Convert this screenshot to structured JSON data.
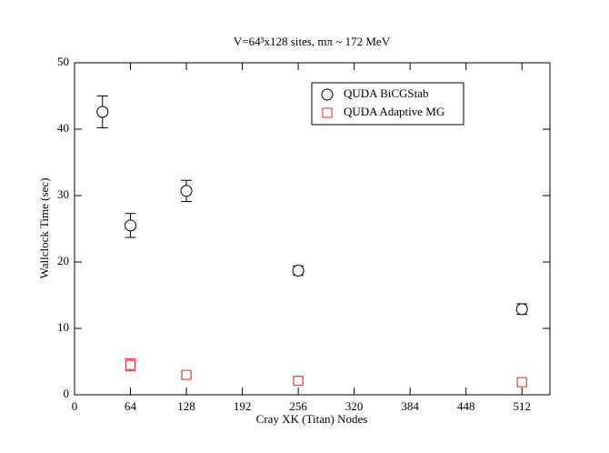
{
  "chart_data": {
    "type": "scatter",
    "title": "V=64³x128 sites, mπ ~ 172 MeV",
    "x_label": "Cray XK (Titan) Nodes",
    "y_label": "Wallclock Time (sec)",
    "xlim": [
      0,
      544
    ],
    "xticks": [
      0,
      64,
      128,
      192,
      256,
      320,
      384,
      448,
      512
    ],
    "ylim": [
      0,
      50
    ],
    "yticks": [
      0,
      10,
      20,
      30,
      40,
      50
    ],
    "legend": "upper right",
    "series": [
      {
        "name": "QUDA BiCGStab",
        "color": "#000000",
        "marker": "circle",
        "x": [
          32,
          64,
          128,
          256,
          512
        ],
        "values": [
          42.6,
          25.5,
          30.7,
          18.7,
          12.9
        ],
        "errors": [
          2.4,
          1.8,
          1.6,
          0.7,
          0.8
        ]
      },
      {
        "name": "QUDA Adaptive MG",
        "color": "#d62728",
        "marker": "square",
        "x": [
          64,
          128,
          256,
          512
        ],
        "values": [
          4.5,
          3.0,
          2.1,
          1.9
        ],
        "errors": [
          0.9,
          0.4,
          0.4,
          0.4
        ]
      }
    ]
  }
}
